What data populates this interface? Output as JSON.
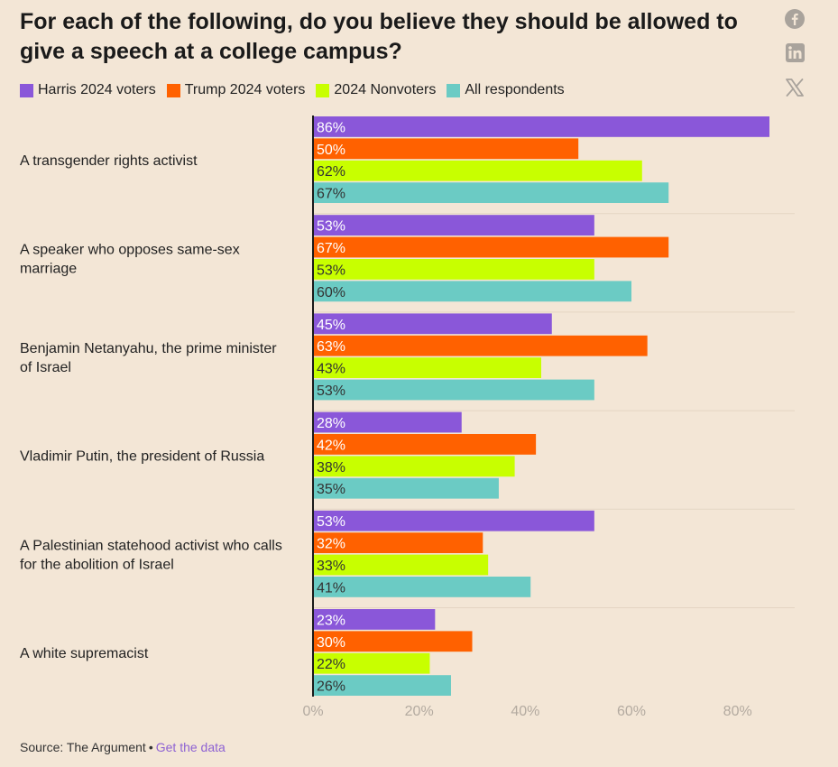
{
  "title": "For each of the following, do you believe they should be allowed to give a speech at a college campus?",
  "share_icons": [
    "facebook-icon",
    "linkedin-icon",
    "x-icon"
  ],
  "source": {
    "label": "Source: The Argument",
    "separator": "•",
    "link_text": "Get the data"
  },
  "chart_data": {
    "type": "bar",
    "orientation": "horizontal",
    "title": "For each of the following, do you believe they should be allowed to give a speech at a college campus?",
    "categories": [
      [
        "A transgender rights activist"
      ],
      [
        "A speaker who opposes same-sex",
        "marriage"
      ],
      [
        "Benjamin Netanyahu, the prime minister",
        "of Israel"
      ],
      [
        "Vladimir Putin, the president of Russia"
      ],
      [
        "A Palestinian statehood activist who calls",
        "for the abolition of Israel"
      ],
      [
        "A white supremacist"
      ]
    ],
    "series": [
      {
        "name": "Harris 2024 voters",
        "color": "#8a57d9",
        "label_color": "#ffffff",
        "values": [
          86,
          53,
          45,
          28,
          53,
          23
        ]
      },
      {
        "name": "Trump 2024 voters",
        "color": "#ff6100",
        "label_color": "#ffffff",
        "values": [
          50,
          67,
          63,
          42,
          32,
          30
        ]
      },
      {
        "name": "2024 Nonvoters",
        "color": "#c8ff00",
        "label_color": "#333333",
        "values": [
          62,
          53,
          43,
          38,
          33,
          22
        ]
      },
      {
        "name": "All respondents",
        "color": "#6bcbc4",
        "label_color": "#333333",
        "values": [
          67,
          60,
          53,
          35,
          41,
          26
        ]
      }
    ],
    "value_suffix": "%",
    "xlim": [
      0,
      86
    ],
    "xticks": [
      0,
      20,
      40,
      60,
      80
    ],
    "xtick_labels": [
      "0%",
      "20%",
      "40%",
      "60%",
      "80%"
    ],
    "legend_position": "top-left",
    "grid": false
  }
}
